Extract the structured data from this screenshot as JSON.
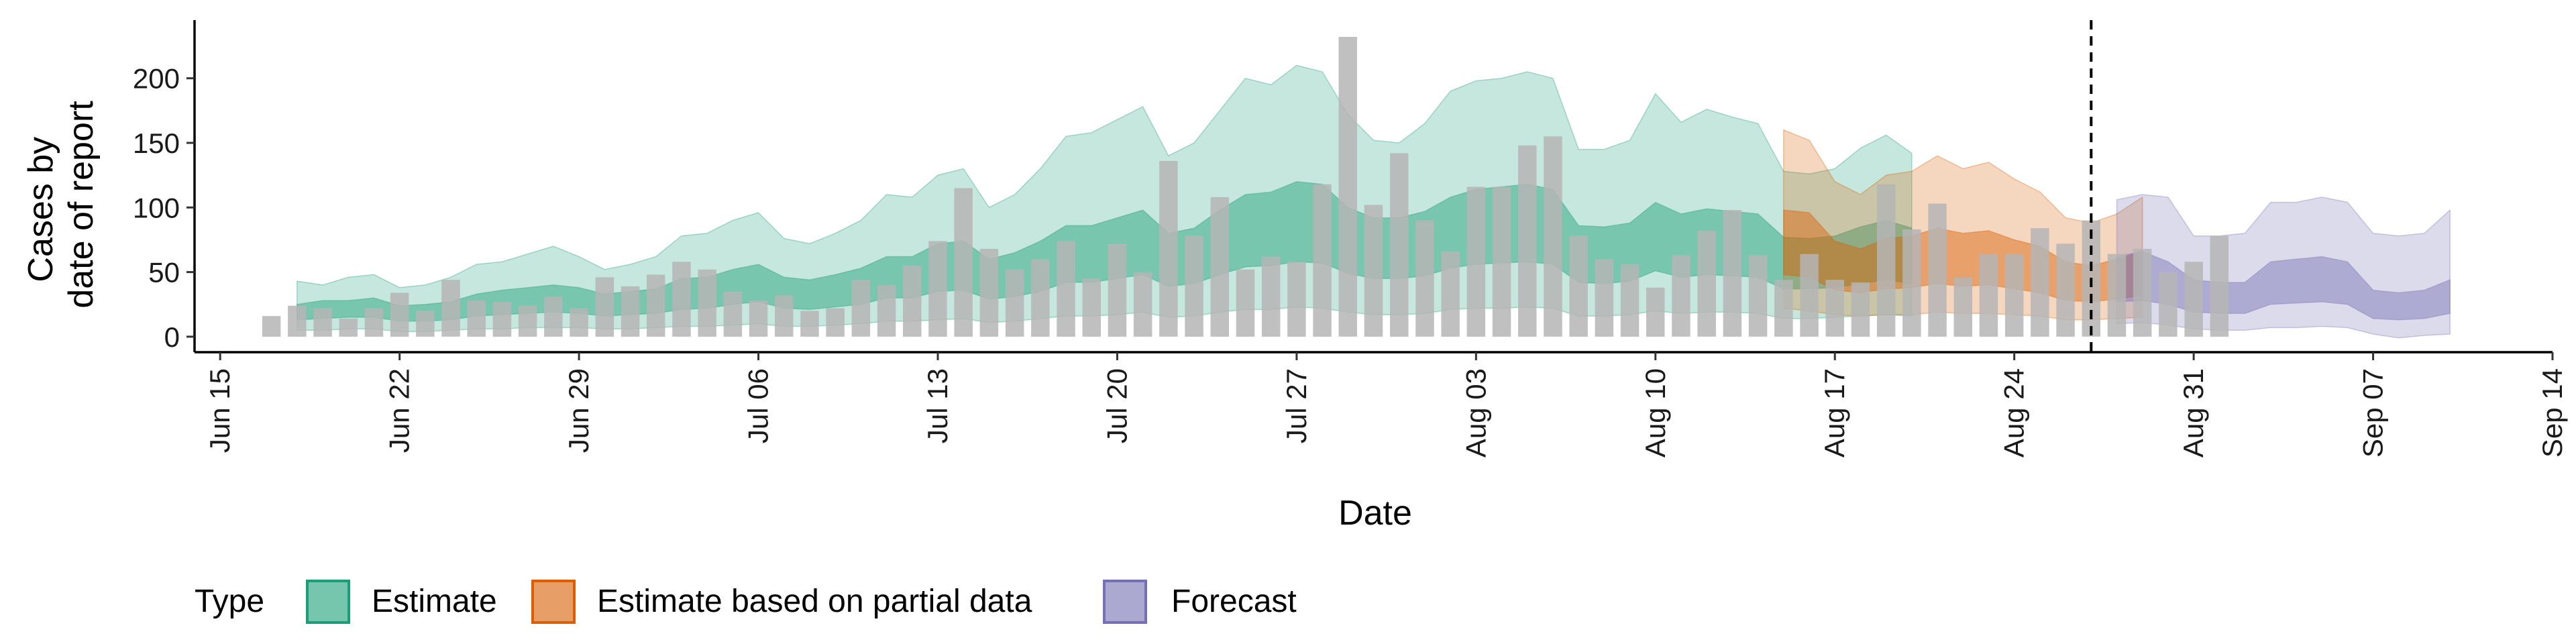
{
  "chart_data": {
    "type": "area",
    "xlabel": "Date",
    "ylabel": [
      "Cases by",
      "date of report"
    ],
    "x_start": "2020-06-14",
    "x_end": "2020-09-14",
    "y_ticks": [
      0,
      50,
      100,
      150,
      200
    ],
    "ylim": [
      -12,
      245
    ],
    "x_ticks": [
      {
        "date": "2020-06-15",
        "label": "Jun 15"
      },
      {
        "date": "2020-06-22",
        "label": "Jun 22"
      },
      {
        "date": "2020-06-29",
        "label": "Jun 29"
      },
      {
        "date": "2020-07-06",
        "label": "Jul 06"
      },
      {
        "date": "2020-07-13",
        "label": "Jul 13"
      },
      {
        "date": "2020-07-20",
        "label": "Jul 20"
      },
      {
        "date": "2020-07-27",
        "label": "Jul 27"
      },
      {
        "date": "2020-08-03",
        "label": "Aug 03"
      },
      {
        "date": "2020-08-10",
        "label": "Aug 10"
      },
      {
        "date": "2020-08-17",
        "label": "Aug 17"
      },
      {
        "date": "2020-08-24",
        "label": "Aug 24"
      },
      {
        "date": "2020-08-31",
        "label": "Aug 31"
      },
      {
        "date": "2020-09-07",
        "label": "Sep 07"
      },
      {
        "date": "2020-09-14",
        "label": "Sep 14"
      }
    ],
    "reported_cases": {
      "start_date": "2020-06-17",
      "values": [
        16,
        24,
        22,
        14,
        22,
        34,
        20,
        44,
        28,
        27,
        24,
        31,
        22,
        46,
        39,
        48,
        58,
        52,
        35,
        28,
        32,
        20,
        22,
        44,
        40,
        55,
        74,
        115,
        68,
        52,
        60,
        74,
        45,
        72,
        50,
        136,
        78,
        108,
        52,
        62,
        58,
        118,
        232,
        102,
        142,
        90,
        66,
        116,
        116,
        148,
        155,
        78,
        60,
        56,
        38,
        63,
        82,
        98,
        63,
        44,
        64,
        44,
        42,
        118,
        83,
        103,
        46,
        64,
        64,
        84,
        72,
        90,
        64,
        68,
        50,
        58,
        78
      ]
    },
    "estimate": {
      "start_date": "2020-06-18",
      "upper_90": [
        43,
        40,
        46,
        48,
        38,
        40,
        46,
        56,
        58,
        64,
        70,
        62,
        52,
        56,
        62,
        78,
        80,
        90,
        96,
        76,
        72,
        80,
        90,
        110,
        108,
        125,
        130,
        100,
        110,
        130,
        155,
        158,
        168,
        178,
        140,
        150,
        175,
        200,
        195,
        210,
        205,
        172,
        152,
        150,
        165,
        190,
        198,
        200,
        205,
        200,
        145,
        145,
        152,
        188,
        166,
        176,
        170,
        165,
        128,
        126,
        130,
        146,
        156,
        142
      ],
      "upper_50": [
        25,
        28,
        28,
        30,
        24,
        25,
        27,
        33,
        36,
        38,
        40,
        38,
        33,
        35,
        37,
        45,
        46,
        52,
        56,
        46,
        44,
        48,
        53,
        62,
        62,
        72,
        74,
        60,
        65,
        74,
        86,
        86,
        92,
        98,
        80,
        84,
        98,
        110,
        112,
        120,
        118,
        100,
        92,
        92,
        97,
        108,
        114,
        116,
        118,
        114,
        86,
        85,
        88,
        104,
        95,
        99,
        97,
        95,
        77,
        76,
        78,
        85,
        90,
        84
      ],
      "lower_50": [
        13,
        14,
        15,
        15,
        12,
        12,
        13,
        16,
        17,
        18,
        19,
        18,
        16,
        17,
        18,
        21,
        22,
        25,
        27,
        22,
        21,
        23,
        25,
        30,
        30,
        35,
        36,
        29,
        31,
        35,
        42,
        42,
        45,
        48,
        39,
        41,
        48,
        54,
        55,
        58,
        57,
        49,
        45,
        45,
        47,
        53,
        56,
        57,
        58,
        56,
        42,
        41,
        43,
        51,
        46,
        48,
        47,
        46,
        37,
        37,
        38,
        41,
        44,
        41
      ],
      "lower_90": [
        5,
        5,
        6,
        6,
        4,
        4,
        5,
        6,
        6,
        7,
        7,
        7,
        6,
        6,
        7,
        8,
        8,
        9,
        10,
        8,
        8,
        9,
        10,
        12,
        12,
        13,
        14,
        11,
        12,
        14,
        16,
        16,
        17,
        19,
        15,
        16,
        19,
        21,
        21,
        23,
        22,
        19,
        17,
        17,
        18,
        21,
        22,
        22,
        23,
        22,
        16,
        16,
        17,
        20,
        18,
        19,
        19,
        18,
        14,
        14,
        15,
        16,
        17,
        16
      ]
    },
    "partial": {
      "start_date": "2020-08-15",
      "upper_90": [
        160,
        152,
        120,
        110,
        125,
        128,
        140,
        130,
        135,
        122,
        112,
        92,
        88,
        95,
        108
      ],
      "upper_50": [
        98,
        96,
        74,
        68,
        76,
        78,
        84,
        80,
        82,
        75,
        70,
        58,
        55,
        60,
        66
      ],
      "lower_50": [
        48,
        46,
        36,
        34,
        37,
        38,
        41,
        39,
        40,
        37,
        34,
        28,
        27,
        29,
        32
      ],
      "lower_90": [
        22,
        20,
        17,
        16,
        17,
        17,
        19,
        18,
        18,
        17,
        16,
        13,
        13,
        14,
        15
      ]
    },
    "forecast": {
      "start_date": "2020-08-28",
      "upper_90": [
        106,
        110,
        108,
        78,
        78,
        80,
        104,
        104,
        108,
        104,
        80,
        78,
        80,
        98
      ],
      "upper_50": [
        62,
        66,
        58,
        44,
        42,
        42,
        58,
        60,
        62,
        58,
        36,
        34,
        36,
        44
      ],
      "lower_50": [
        27,
        28,
        25,
        19,
        18,
        18,
        25,
        26,
        27,
        25,
        14,
        13,
        14,
        18
      ],
      "lower_90": [
        10,
        11,
        9,
        6,
        5,
        5,
        7,
        7,
        8,
        7,
        2,
        -1,
        1,
        2
      ]
    },
    "vline_date": "2020-08-27",
    "colors": {
      "bars": "#b5b5b5",
      "estimate": "#1b9e77",
      "partial": "#d95f02",
      "forecast": "#7570b3"
    },
    "legend": {
      "title": "Type",
      "entries": [
        "Estimate",
        "Estimate based on partial data",
        "Forecast"
      ]
    }
  }
}
